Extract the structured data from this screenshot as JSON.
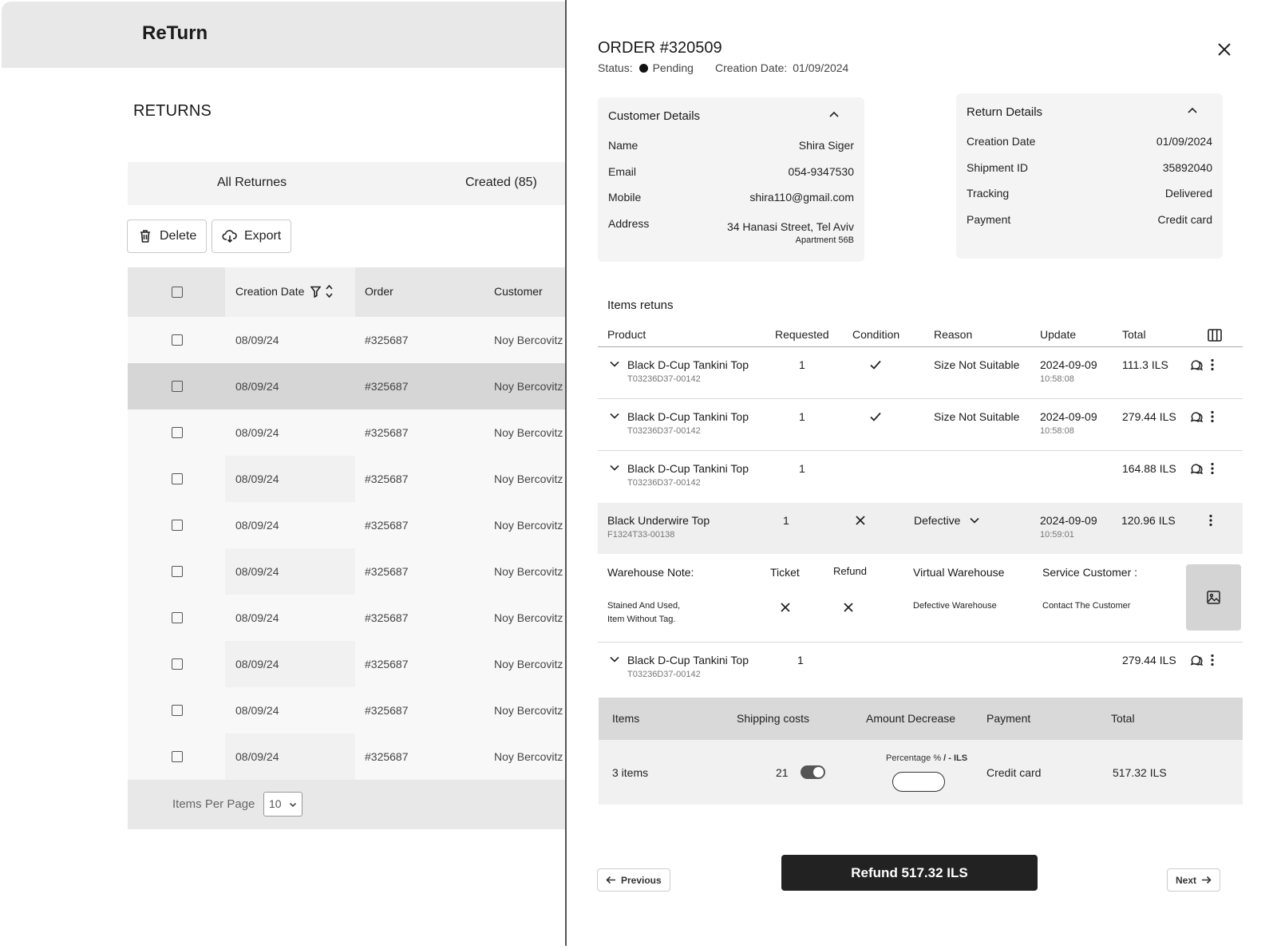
{
  "app": {
    "logo": "ReTurn",
    "page_title": "RETURNS"
  },
  "tabs": [
    {
      "label": "All Returnes"
    },
    {
      "label": "Created (85)"
    }
  ],
  "toolbar": {
    "delete_label": "Delete",
    "export_label": "Export"
  },
  "table": {
    "columns": {
      "date": "Creation Date",
      "order": "Order",
      "customer": "Customer"
    },
    "rows": [
      {
        "date": "08/09/24",
        "order": "#325687",
        "customer": "Noy Bercovitz"
      },
      {
        "date": "08/09/24",
        "order": "#325687",
        "customer": "Noy Bercovitz"
      },
      {
        "date": "08/09/24",
        "order": "#325687",
        "customer": "Noy Bercovitz"
      },
      {
        "date": "08/09/24",
        "order": "#325687",
        "customer": "Noy Bercovitz"
      },
      {
        "date": "08/09/24",
        "order": "#325687",
        "customer": "Noy Bercovitz"
      },
      {
        "date": "08/09/24",
        "order": "#325687",
        "customer": "Noy Bercovitz"
      },
      {
        "date": "08/09/24",
        "order": "#325687",
        "customer": "Noy Bercovitz"
      },
      {
        "date": "08/09/24",
        "order": "#325687",
        "customer": "Noy Bercovitz"
      },
      {
        "date": "08/09/24",
        "order": "#325687",
        "customer": "Noy Bercovitz"
      },
      {
        "date": "08/09/24",
        "order": "#325687",
        "customer": "Noy Bercovitz"
      }
    ],
    "items_per_page_label": "Items Per Page",
    "items_per_page_value": "10"
  },
  "order": {
    "title": "ORDER #320509",
    "status_label": "Status:",
    "status_value": "Pending",
    "creation_label": "Creation Date:",
    "creation_value": "01/09/2024"
  },
  "customer": {
    "title": "Customer Details",
    "name_label": "Name",
    "name": "Shira Siger",
    "email_label": "Email",
    "email": "054-9347530",
    "mobile_label": "Mobile",
    "mobile": "shira110@gmail.com",
    "address_label": "Address",
    "address": "34 Hanasi Street, Tel Aviv",
    "address_sub": "Apartment 56B"
  },
  "return_details": {
    "title": "Return  Details",
    "creation_label": "Creation Date",
    "creation": "01/09/2024",
    "shipment_label": "Shipment ID",
    "shipment": "35892040",
    "tracking_label": "Tracking",
    "tracking": "Delivered",
    "payment_label": "Payment",
    "payment": "Credit card"
  },
  "items": {
    "heading": "Items retuns",
    "columns": {
      "product": "Product",
      "requested": "Requested",
      "condition": "Condition",
      "reason": "Reason",
      "update": "Update",
      "total": "Total"
    },
    "rows": [
      {
        "name": "Black D-Cup Tankini Top",
        "sku": "T03236D37-00142",
        "requested": "1",
        "reason": "Size Not Suitable",
        "update_date": "2024-09-09",
        "update_time": "10:58:08",
        "total": "111.3 ILS"
      },
      {
        "name": "Black D-Cup Tankini Top",
        "sku": "T03236D37-00142",
        "requested": "1",
        "reason": "Size Not Suitable",
        "update_date": "2024-09-09",
        "update_time": "10:58:08",
        "total": "279.44 ILS"
      },
      {
        "name": "Black D-Cup Tankini Top",
        "sku": "T03236D37-00142",
        "requested": "1",
        "total": "164.88 ILS"
      },
      {
        "name": "Black Underwire Top",
        "sku": "F1324T33-00138",
        "requested": "1",
        "reason": "Defective",
        "update_date": "2024-09-09",
        "update_time": "10:59:01",
        "total": "120.96  ILS"
      },
      {
        "name": "Black D-Cup Tankini Top",
        "sku": "T03236D37-00142",
        "requested": "1",
        "total": "279.44 ILS"
      }
    ],
    "expanded": {
      "warehouse_note_label": "Warehouse Note:",
      "warehouse_note_line1": "Stained And Used,",
      "warehouse_note_line2": "Item Without Tag.",
      "ticket_label": "Ticket",
      "refund_label": "Refund",
      "virtual_warehouse_label": "Virtual Warehouse",
      "virtual_warehouse_value": "Defective Warehouse",
      "service_label": "Service Customer :",
      "service_value": "Contact The Customer"
    }
  },
  "summary": {
    "items_label": "Items",
    "shipping_label": "Shipping costs",
    "decrease_label": "Amount Decrease",
    "payment_label": "Payment",
    "total_label": "Total",
    "items_value": "3 items",
    "shipping_value": "21",
    "shipping_toggle_on": true,
    "percentage_label": "Percentage % ",
    "percentage_sep": "/",
    "percentage_ils": " - ILS",
    "payment_value": "Credit card",
    "total_value": "517.32 ILS"
  },
  "footer": {
    "previous_label": "Previous",
    "refund_label": "Refund 517.32 ILS",
    "next_label": "Next"
  }
}
